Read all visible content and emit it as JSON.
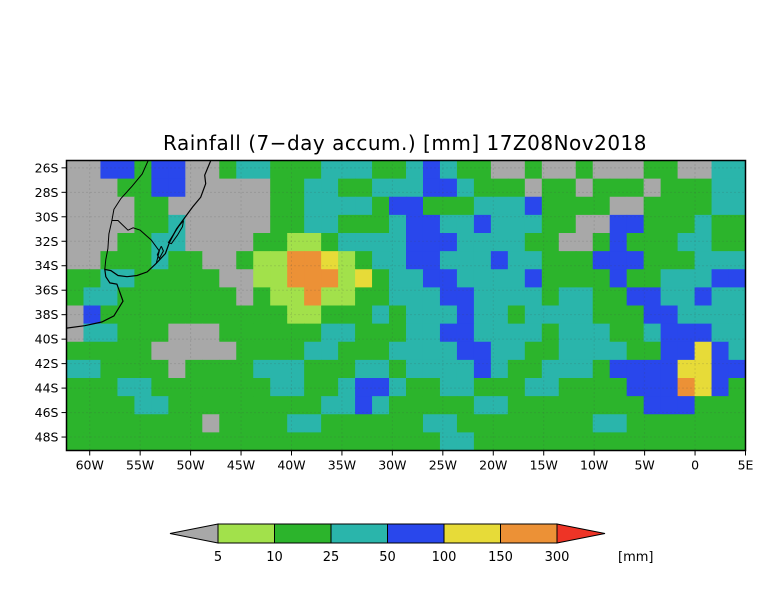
{
  "page": {
    "background": "#ffffff"
  },
  "chart_data": {
    "type": "heatmap",
    "title": "Rainfall (7−day accum.) [mm] 17Z08Nov2018",
    "units_label": "[mm]",
    "lon_range": [
      -62.3,
      5.0
    ],
    "lat_range": [
      -25.4,
      -49.1
    ],
    "x_tick_labels": [
      "60W",
      "55W",
      "50W",
      "45W",
      "40W",
      "35W",
      "30W",
      "25W",
      "20W",
      "15W",
      "10W",
      "5W",
      "0",
      "5E"
    ],
    "x_tick_lons": [
      -60,
      -55,
      -50,
      -45,
      -40,
      -35,
      -30,
      -25,
      -20,
      -15,
      -10,
      -5,
      0,
      5
    ],
    "y_tick_labels": [
      "26S",
      "28S",
      "30S",
      "32S",
      "34S",
      "36S",
      "38S",
      "40S",
      "42S",
      "44S",
      "46S",
      "48S"
    ],
    "y_tick_lats": [
      -26,
      -28,
      -30,
      -32,
      -34,
      -36,
      -38,
      -40,
      -42,
      -44,
      -46,
      -48
    ],
    "levels": [
      5,
      10,
      25,
      50,
      100,
      150,
      300
    ],
    "colorbar_labels": [
      "5",
      "10",
      "25",
      "50",
      "100",
      "150",
      "300"
    ],
    "palette": {
      "below": "#a8a8a8",
      "bins": [
        "#a2e14b",
        "#2cb42c",
        "#2ab5ab",
        "#2947ec",
        "#e7db38",
        "#ec9136"
      ],
      "above": "#ee3426",
      "outline": "#000000"
    },
    "grid": {
      "cols": 40,
      "rows": 16,
      "legend_of_values": "0=<5mm(gray) 1=5-10 2=10-25 3=25-50 4=50-100 5=100-150 6=150-300 7=>300",
      "cell_values_by_row": [
        "0044244002332223332234322002002000220033",
        "0002244000002233223334432220220222022233",
        "0000220000002233332442223334222200222233",
        "0000223000002233222344334333220044222322",
        "0002233000022112333344433332200242223322",
        "0022232200211665123344333433222444222333",
        "2233222220011666152334433334222242233344",
        "2332222222021161122333443333233224433433",
        "0422222222222112223233343323333222443333",
        "0332220002222223322233443333233322344433",
        "2222200000222233222333344332233332244543",
        "3322220222233322233233334322333244445544",
        "2223322222223322344322332223322224446542",
        "2222332222222223343222223322222222444222",
        "2222222202222332222223322222222332222222",
        "2222222222222222222222332222222222222222"
      ]
    },
    "map_overlays": {
      "coastline": [
        [
          -48.0,
          -25.4
        ],
        [
          -48.6,
          -26.6
        ],
        [
          -48.5,
          -27.3
        ],
        [
          -49.0,
          -28.4
        ],
        [
          -49.8,
          -29.2
        ],
        [
          -50.6,
          -30.1
        ],
        [
          -51.4,
          -31.0
        ],
        [
          -52.1,
          -32.1
        ],
        [
          -52.5,
          -33.0
        ],
        [
          -53.4,
          -33.8
        ],
        [
          -54.3,
          -34.5
        ],
        [
          -55.3,
          -34.8
        ],
        [
          -56.3,
          -34.9
        ],
        [
          -57.2,
          -34.8
        ],
        [
          -57.9,
          -34.4
        ],
        [
          -58.5,
          -34.3
        ],
        [
          -58.4,
          -34.9
        ],
        [
          -58.0,
          -35.4
        ],
        [
          -57.3,
          -35.5
        ],
        [
          -57.0,
          -36.2
        ],
        [
          -56.7,
          -36.9
        ],
        [
          -57.6,
          -38.1
        ],
        [
          -58.8,
          -38.6
        ],
        [
          -60.5,
          -38.9
        ],
        [
          -62.3,
          -39.1
        ]
      ],
      "borders": [
        [
          [
            -53.4,
            -33.8
          ],
          [
            -53.1,
            -32.8
          ],
          [
            -53.9,
            -31.9
          ],
          [
            -55.0,
            -31.1
          ],
          [
            -55.7,
            -30.9
          ],
          [
            -56.2,
            -31.1
          ],
          [
            -57.2,
            -30.3
          ],
          [
            -57.8,
            -30.3
          ],
          [
            -58.1,
            -31.4
          ],
          [
            -58.2,
            -32.6
          ],
          [
            -58.4,
            -33.5
          ],
          [
            -58.5,
            -34.3
          ]
        ],
        [
          [
            -57.8,
            -30.3
          ],
          [
            -57.6,
            -29.4
          ],
          [
            -56.9,
            -28.5
          ],
          [
            -55.8,
            -27.5
          ],
          [
            -54.8,
            -26.5
          ],
          [
            -54.2,
            -25.4
          ]
        ]
      ],
      "lakes": [
        [
          [
            -50.7,
            -30.3
          ],
          [
            -51.2,
            -30.8
          ],
          [
            -51.9,
            -31.7
          ],
          [
            -52.2,
            -32.1
          ],
          [
            -51.9,
            -32.2
          ],
          [
            -51.3,
            -31.5
          ],
          [
            -50.8,
            -30.8
          ],
          [
            -50.7,
            -30.3
          ]
        ],
        [
          [
            -52.9,
            -32.4
          ],
          [
            -53.3,
            -33.1
          ],
          [
            -53.1,
            -33.4
          ],
          [
            -52.7,
            -32.8
          ],
          [
            -52.9,
            -32.4
          ]
        ]
      ]
    }
  }
}
